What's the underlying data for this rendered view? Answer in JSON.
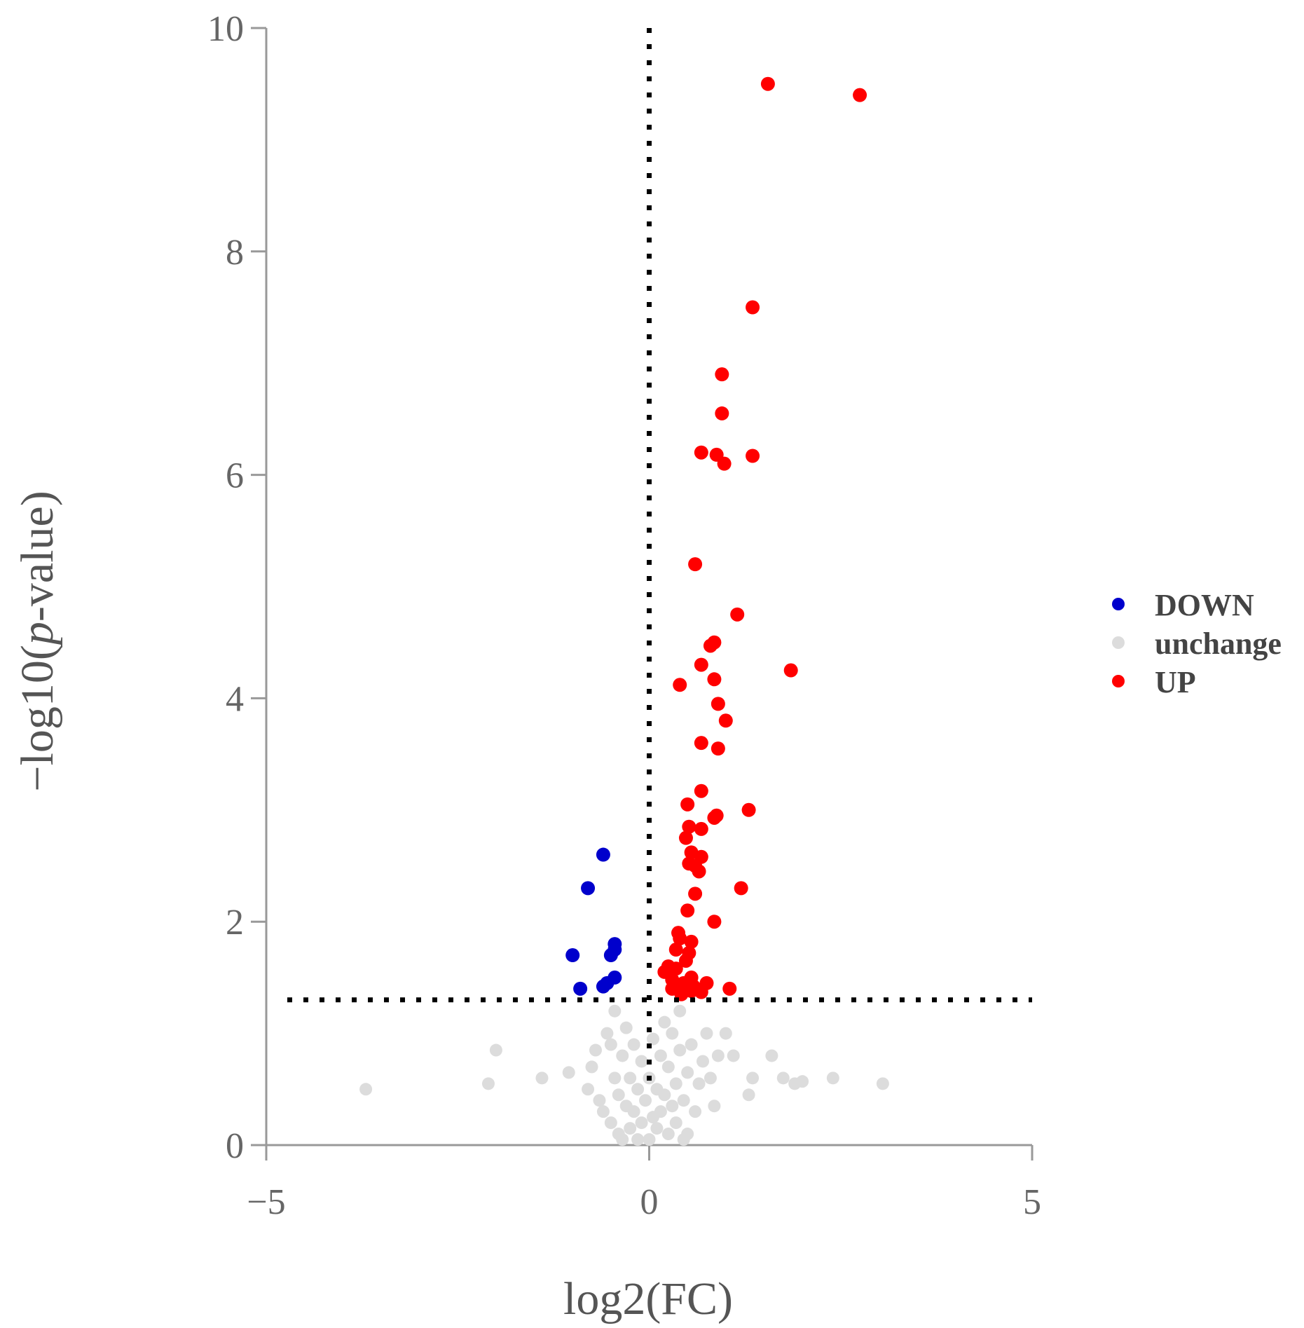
{
  "chart_data": {
    "type": "scatter",
    "title": "",
    "xlabel": "log2(FC)",
    "ylabel_prefix": "−log10(",
    "ylabel_italic": "p",
    "ylabel_suffix": "-value)",
    "xlim": [
      -5,
      5
    ],
    "ylim": [
      0,
      10
    ],
    "x_ticks": [
      -5,
      0,
      5
    ],
    "x_tick_labels": [
      "−5",
      "0",
      "5"
    ],
    "y_ticks": [
      0,
      2,
      4,
      6,
      8,
      10
    ],
    "y_tick_labels": [
      "0",
      "2",
      "4",
      "6",
      "8",
      "10"
    ],
    "grid": false,
    "threshold_lines": {
      "x": 0,
      "y": 1.3
    },
    "legend_position": "right",
    "colors": {
      "DOWN": "#0000cc",
      "unchange": "#dcdcdc",
      "UP": "#ff0000",
      "threshold": "#000000",
      "axis": "#999999"
    },
    "series": [
      {
        "name": "DOWN",
        "points": [
          [
            -0.6,
            2.6
          ],
          [
            -0.8,
            2.3
          ],
          [
            -1.0,
            1.7
          ],
          [
            -0.9,
            1.4
          ],
          [
            -0.45,
            1.8
          ],
          [
            -0.45,
            1.75
          ],
          [
            -0.5,
            1.7
          ],
          [
            -0.45,
            1.5
          ],
          [
            -0.55,
            1.45
          ],
          [
            -0.6,
            1.42
          ]
        ]
      },
      {
        "name": "unchange",
        "points": [
          [
            -3.7,
            0.5
          ],
          [
            -2.1,
            0.55
          ],
          [
            -2.0,
            0.85
          ],
          [
            -1.4,
            0.6
          ],
          [
            -1.05,
            0.65
          ],
          [
            -0.8,
            0.5
          ],
          [
            -0.75,
            0.7
          ],
          [
            -0.7,
            0.85
          ],
          [
            -0.65,
            0.4
          ],
          [
            -0.6,
            0.3
          ],
          [
            -0.55,
            1.0
          ],
          [
            -0.5,
            0.9
          ],
          [
            -0.5,
            0.2
          ],
          [
            -0.45,
            0.6
          ],
          [
            -0.45,
            1.2
          ],
          [
            -0.4,
            0.45
          ],
          [
            -0.4,
            0.1
          ],
          [
            -0.35,
            0.8
          ],
          [
            -0.3,
            0.35
          ],
          [
            -0.3,
            1.05
          ],
          [
            -0.25,
            0.15
          ],
          [
            -0.25,
            0.6
          ],
          [
            -0.2,
            0.9
          ],
          [
            -0.2,
            0.3
          ],
          [
            -0.15,
            0.05
          ],
          [
            -0.15,
            0.5
          ],
          [
            -0.1,
            0.75
          ],
          [
            -0.1,
            0.2
          ],
          [
            -0.05,
            0.4
          ],
          [
            0.0,
            0.05
          ],
          [
            0.0,
            0.6
          ],
          [
            0.05,
            0.25
          ],
          [
            0.05,
            0.95
          ],
          [
            0.1,
            0.15
          ],
          [
            0.1,
            0.5
          ],
          [
            0.15,
            0.8
          ],
          [
            0.15,
            0.3
          ],
          [
            0.2,
            1.1
          ],
          [
            0.2,
            0.45
          ],
          [
            0.25,
            0.1
          ],
          [
            0.25,
            0.7
          ],
          [
            0.3,
            0.35
          ],
          [
            0.3,
            1.0
          ],
          [
            0.35,
            0.55
          ],
          [
            0.35,
            0.2
          ],
          [
            0.4,
            0.85
          ],
          [
            0.4,
            1.2
          ],
          [
            0.45,
            0.4
          ],
          [
            0.5,
            0.65
          ],
          [
            0.5,
            0.1
          ],
          [
            0.55,
            0.9
          ],
          [
            0.6,
            0.3
          ],
          [
            0.65,
            0.55
          ],
          [
            0.7,
            0.75
          ],
          [
            0.75,
            1.0
          ],
          [
            0.8,
            0.6
          ],
          [
            0.85,
            0.35
          ],
          [
            0.9,
            0.8
          ],
          [
            1.0,
            1.0
          ],
          [
            1.1,
            0.8
          ],
          [
            1.3,
            0.45
          ],
          [
            1.35,
            0.6
          ],
          [
            1.6,
            0.8
          ],
          [
            1.75,
            0.6
          ],
          [
            1.9,
            0.55
          ],
          [
            2.0,
            0.57
          ],
          [
            2.4,
            0.6
          ],
          [
            3.05,
            0.55
          ],
          [
            -0.35,
            0.05
          ],
          [
            0.45,
            0.05
          ]
        ]
      },
      {
        "name": "UP",
        "points": [
          [
            1.55,
            9.5
          ],
          [
            2.75,
            9.4
          ],
          [
            1.35,
            7.5
          ],
          [
            0.95,
            6.9
          ],
          [
            0.95,
            6.55
          ],
          [
            0.68,
            6.2
          ],
          [
            0.88,
            6.18
          ],
          [
            1.35,
            6.17
          ],
          [
            0.98,
            6.1
          ],
          [
            0.6,
            5.2
          ],
          [
            1.15,
            4.75
          ],
          [
            0.85,
            4.5
          ],
          [
            0.8,
            4.47
          ],
          [
            1.85,
            4.25
          ],
          [
            0.68,
            4.3
          ],
          [
            0.85,
            4.17
          ],
          [
            0.4,
            4.12
          ],
          [
            0.9,
            3.95
          ],
          [
            1.0,
            3.8
          ],
          [
            0.68,
            3.6
          ],
          [
            0.9,
            3.55
          ],
          [
            0.68,
            3.17
          ],
          [
            0.5,
            3.05
          ],
          [
            1.3,
            3.0
          ],
          [
            0.88,
            2.95
          ],
          [
            0.85,
            2.93
          ],
          [
            0.52,
            2.85
          ],
          [
            0.68,
            2.83
          ],
          [
            0.48,
            2.75
          ],
          [
            0.55,
            2.62
          ],
          [
            0.68,
            2.58
          ],
          [
            0.52,
            2.52
          ],
          [
            0.6,
            2.5
          ],
          [
            0.65,
            2.45
          ],
          [
            1.2,
            2.3
          ],
          [
            0.6,
            2.25
          ],
          [
            0.5,
            2.1
          ],
          [
            0.85,
            2.0
          ],
          [
            0.38,
            1.9
          ],
          [
            0.4,
            1.85
          ],
          [
            0.55,
            1.82
          ],
          [
            0.35,
            1.75
          ],
          [
            0.52,
            1.72
          ],
          [
            0.48,
            1.65
          ],
          [
            0.25,
            1.6
          ],
          [
            0.35,
            1.58
          ],
          [
            0.55,
            1.5
          ],
          [
            0.45,
            1.45
          ],
          [
            0.58,
            1.42
          ],
          [
            0.3,
            1.4
          ],
          [
            0.55,
            1.38
          ],
          [
            0.68,
            1.37
          ],
          [
            0.75,
            1.45
          ],
          [
            0.42,
            1.35
          ],
          [
            1.05,
            1.4
          ],
          [
            0.2,
            1.55
          ],
          [
            0.3,
            1.48
          ]
        ]
      }
    ]
  }
}
